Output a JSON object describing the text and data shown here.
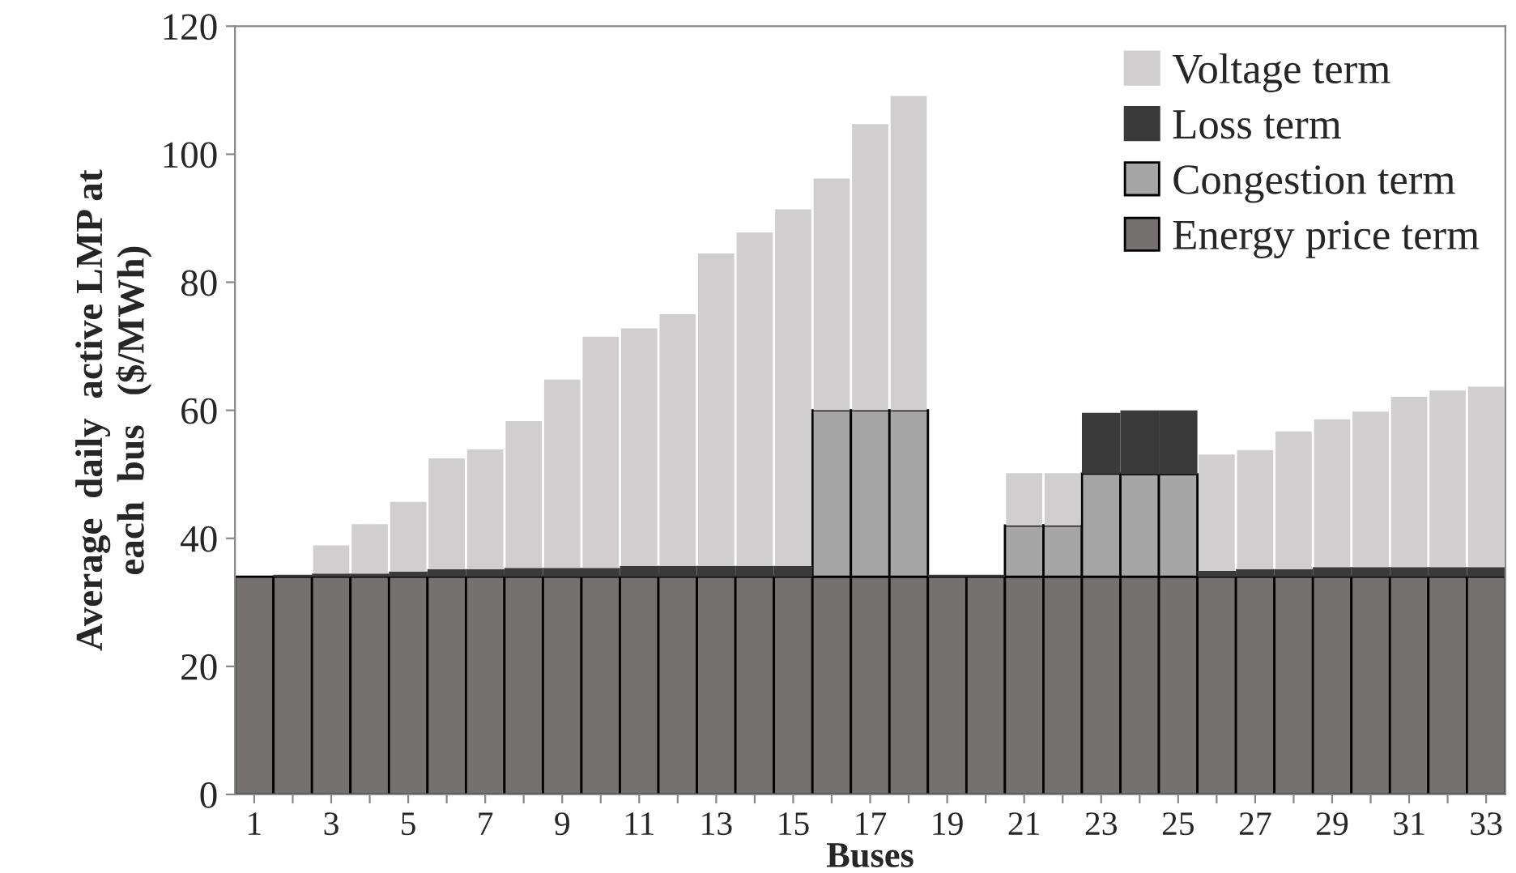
{
  "chart_data": {
    "type": "bar",
    "stacked": true,
    "xlabel": "Buses",
    "ylabel": "Average  daily  active LMP at\neach  bus   ($/MWh)",
    "categories": [
      "1",
      null,
      "3",
      null,
      "5",
      null,
      "7",
      null,
      "9",
      null,
      "11",
      null,
      "13",
      null,
      "15",
      null,
      "17",
      null,
      "19",
      null,
      "21",
      null,
      "23",
      null,
      "25",
      null,
      "27",
      null,
      "29",
      null,
      "31",
      null,
      "33"
    ],
    "series": [
      {
        "name": "Energy price term",
        "color": "#757171",
        "values": [
          34,
          34,
          34,
          34,
          34,
          34,
          34,
          34,
          34,
          34,
          34,
          34,
          34,
          34,
          34,
          34,
          34,
          34,
          34,
          34,
          34,
          34,
          34,
          34,
          34,
          34,
          34,
          34,
          34,
          34,
          34,
          34,
          34
        ]
      },
      {
        "name": "Congestion term",
        "color": "#a6a6a6",
        "values": [
          0,
          0,
          0,
          0,
          0,
          0,
          0,
          0,
          0,
          0,
          0,
          0,
          0,
          0,
          0,
          26,
          26,
          26,
          0,
          0,
          8,
          8,
          16.1,
          16,
          16,
          0,
          0,
          0,
          0,
          0,
          0,
          0,
          0
        ]
      },
      {
        "name": "Loss term",
        "color": "#3a3a3a",
        "values": [
          0,
          0.3,
          0.5,
          0.5,
          0.8,
          1.2,
          1.2,
          1.4,
          1.4,
          1.4,
          1.7,
          1.7,
          1.7,
          1.7,
          1.7,
          0,
          0,
          0,
          0.3,
          0.3,
          0,
          0,
          9.5,
          10,
          10,
          0.9,
          1.2,
          1.2,
          1.5,
          1.5,
          1.5,
          1.5,
          1.5
        ]
      },
      {
        "name": "Voltage term",
        "color": "#d0cece",
        "values": [
          0,
          0,
          4.4,
          7.7,
          10.9,
          17.3,
          18.7,
          22.9,
          29.4,
          36.1,
          37.1,
          39.3,
          48.8,
          52.1,
          55.7,
          36.2,
          44.7,
          49.1,
          0,
          0,
          8.2,
          8.2,
          0,
          0,
          0,
          18.2,
          18.6,
          21.5,
          23.1,
          24.3,
          26.6,
          27.6,
          28.2
        ]
      }
    ],
    "ylim": [
      0,
      120
    ],
    "yticks": [
      0,
      20,
      40,
      60,
      80,
      100,
      120
    ],
    "grid": false,
    "legend": "top right"
  }
}
